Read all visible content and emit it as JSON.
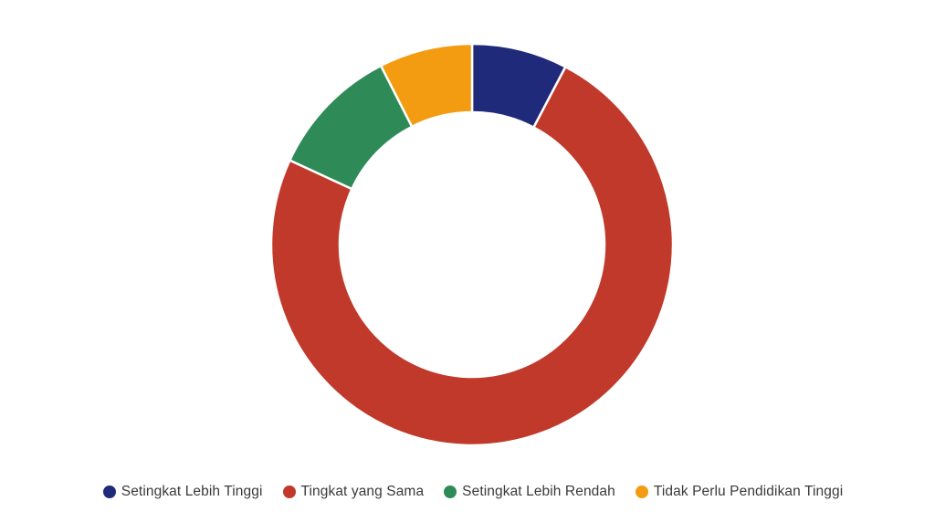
{
  "chart_data": {
    "type": "pie",
    "variant": "donut",
    "categories": [
      "Setingkat Lebih Tinggi",
      "Tingkat yang Sama",
      "Setingkat Lebih Rendah",
      "Tidak Perlu Pendidikan Tinggi"
    ],
    "values": [
      7.7,
      74.2,
      10.6,
      7.5
    ],
    "colors": [
      "#1f2a7a",
      "#c0392b",
      "#2e8b57",
      "#f39c12"
    ],
    "legend_position": "bottom",
    "title": ""
  }
}
